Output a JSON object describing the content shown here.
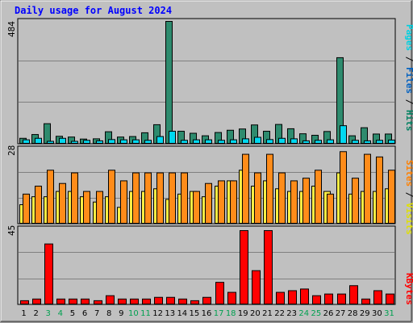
{
  "chart_data": [
    {
      "type": "bar",
      "title": "Daily usage for August 2024",
      "ymax_label": "484",
      "ylim": [
        0,
        484
      ],
      "categories": [
        "1",
        "2",
        "3",
        "4",
        "5",
        "6",
        "7",
        "8",
        "9",
        "10",
        "11",
        "12",
        "13",
        "14",
        "15",
        "16",
        "17",
        "18",
        "19",
        "20",
        "21",
        "22",
        "23",
        "24",
        "25",
        "26",
        "27",
        "28",
        "29",
        "30",
        "31"
      ],
      "weekend_days": [
        "3",
        "4",
        "10",
        "11",
        "17",
        "18",
        "24",
        "25",
        "31"
      ],
      "legend": [
        {
          "text": "Pages",
          "color": "#00d0e0"
        },
        {
          "text": " / ",
          "color": "#000000"
        },
        {
          "text": "Files",
          "color": "#0060c0"
        },
        {
          "text": " / ",
          "color": "#000000"
        },
        {
          "text": "Hits",
          "color": "#008060"
        }
      ],
      "series": [
        {
          "name": "Hits",
          "color": "#2e8b6e",
          "values": [
            20,
            35,
            78,
            28,
            25,
            17,
            18,
            46,
            25,
            27,
            42,
            74,
            484,
            48,
            40,
            30,
            43,
            52,
            57,
            73,
            48,
            75,
            58,
            38,
            32,
            47,
            340,
            30,
            62,
            37,
            37
          ]
        },
        {
          "name": "Pages",
          "color": "#00d8f0",
          "values": [
            14,
            20,
            8,
            20,
            8,
            12,
            10,
            15,
            14,
            14,
            12,
            27,
            48,
            12,
            14,
            14,
            12,
            14,
            18,
            24,
            15,
            20,
            18,
            10,
            12,
            14,
            70,
            12,
            10,
            12,
            13
          ]
        }
      ]
    },
    {
      "type": "bar",
      "ymax_label": "28",
      "ylim": [
        0,
        28
      ],
      "legend": [
        {
          "text": "Sites",
          "color": "#ff8000"
        },
        {
          "text": " / ",
          "color": "#000000"
        },
        {
          "text": "Visits",
          "color": "#e0e000"
        }
      ],
      "series": [
        {
          "name": "Visits",
          "color": "#ffee44",
          "values": [
            7,
            10,
            10,
            12,
            12,
            10,
            8,
            10,
            6,
            12,
            12,
            13,
            9,
            11,
            12,
            10,
            14,
            16,
            20,
            14,
            16,
            13,
            12,
            12,
            14,
            12,
            19,
            11,
            12,
            12,
            13
          ]
        },
        {
          "name": "Sites",
          "color": "#ff8c1a",
          "values": [
            11,
            14,
            20,
            15,
            19,
            12,
            12,
            20,
            16,
            19,
            19,
            19,
            19,
            19,
            12,
            15,
            16,
            16,
            26,
            19,
            26,
            19,
            16,
            17,
            20,
            11,
            27,
            17,
            26,
            25,
            20
          ]
        }
      ]
    },
    {
      "type": "bar",
      "ymax_label": "45",
      "ylim": [
        0,
        45
      ],
      "legend": [
        {
          "text": "KBytes",
          "color": "#ff0000"
        }
      ],
      "series": [
        {
          "name": "KBytes",
          "color": "#ff0000",
          "values": [
            2,
            3,
            36,
            3,
            3,
            3,
            2,
            5,
            3,
            3,
            3,
            4,
            4,
            3,
            2,
            4,
            13,
            7,
            44,
            20,
            44,
            7,
            8,
            9,
            5,
            6,
            6,
            11,
            3,
            8,
            6
          ]
        }
      ]
    }
  ]
}
